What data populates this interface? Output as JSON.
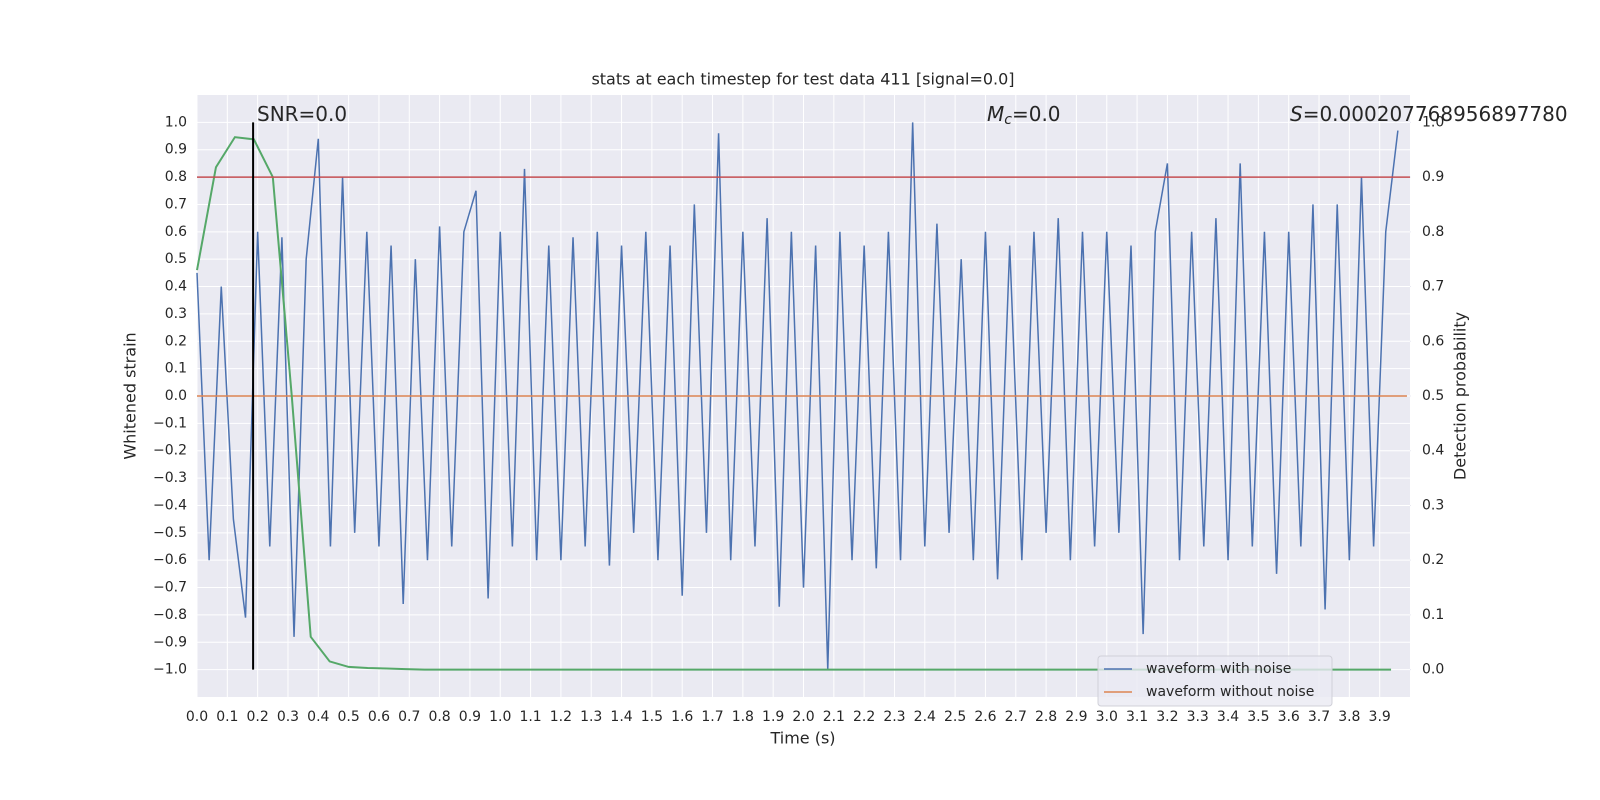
{
  "chart_data": {
    "type": "line",
    "title": "stats at each timestep for test data 411 [signal=0.0]",
    "xlabel": "Time (s)",
    "ylabel": "Whitened strain",
    "y2label": "Detection probability",
    "annotations": [
      {
        "rest": "SNR=0.0"
      },
      {
        "symbol": "M",
        "subscript": "c",
        "rest": "=0.0"
      },
      {
        "symbol": "S",
        "rest": "=0.000207768956897780"
      }
    ],
    "xlim": [
      0,
      4.0
    ],
    "ylim": [
      -1.1,
      1.1
    ],
    "y2lim": [
      -0.05,
      1.05
    ],
    "xticks": [
      {
        "value": 0,
        "label": "0.0"
      },
      0.1,
      0.2,
      0.3,
      0.4,
      0.5,
      0.6,
      0.7,
      0.8,
      0.9,
      {
        "value": 1,
        "label": "1.0"
      },
      1.1,
      1.2,
      1.3,
      1.4,
      1.5,
      1.6,
      1.7,
      1.8,
      1.9,
      {
        "value": 2,
        "label": "2.0"
      },
      2.1,
      2.2,
      2.3,
      2.4,
      2.5,
      2.6,
      2.7,
      2.8,
      2.9,
      {
        "value": 3,
        "label": "3.0"
      },
      3.1,
      3.2,
      3.3,
      3.4,
      3.5,
      3.6,
      3.7,
      3.8,
      3.9
    ],
    "yticks": [
      {
        "value": 1,
        "label": "1.0"
      },
      0.9,
      0.8,
      0.7,
      0.6,
      0.5,
      0.4,
      0.3,
      0.2,
      0.1,
      {
        "value": 0,
        "label": "0.0"
      },
      {
        "value": -0.1,
        "label": "−0.1"
      },
      {
        "value": -0.2,
        "label": "−0.2"
      },
      {
        "value": -0.3,
        "label": "−0.3"
      },
      {
        "value": -0.4,
        "label": "−0.4"
      },
      {
        "value": -0.5,
        "label": "−0.5"
      },
      {
        "value": -0.6,
        "label": "−0.6"
      },
      {
        "value": -0.7,
        "label": "−0.7"
      },
      {
        "value": -0.8,
        "label": "−0.8"
      },
      {
        "value": -0.9,
        "label": "−0.9"
      },
      {
        "value": -1,
        "label": "−1.0"
      }
    ],
    "y2ticks": [
      {
        "value": 1,
        "label": "1.0"
      },
      0.9,
      0.8,
      0.7,
      0.6,
      0.5,
      0.4,
      0.3,
      0.2,
      0.1,
      {
        "value": 0,
        "label": "0.0"
      }
    ],
    "grid": true,
    "legend": "lower right",
    "series": [
      {
        "name": "waveform with noise",
        "color": "#4c72b0",
        "axis": "y",
        "x": [
          0.0,
          0.04,
          0.08,
          0.12,
          0.16,
          0.2,
          0.24,
          0.28,
          0.32,
          0.36,
          0.4,
          0.44,
          0.48,
          0.52,
          0.56,
          0.6,
          0.64,
          0.68,
          0.72,
          0.76,
          0.8,
          0.84,
          0.88,
          0.92,
          0.96,
          1.0,
          1.04,
          1.08,
          1.12,
          1.16,
          1.2,
          1.24,
          1.28,
          1.32,
          1.36,
          1.4,
          1.44,
          1.48,
          1.52,
          1.56,
          1.6,
          1.64,
          1.68,
          1.72,
          1.76,
          1.8,
          1.84,
          1.88,
          1.92,
          1.96,
          2.0,
          2.04,
          2.08,
          2.12,
          2.16,
          2.2,
          2.24,
          2.28,
          2.32,
          2.36,
          2.4,
          2.44,
          2.48,
          2.52,
          2.56,
          2.6,
          2.64,
          2.68,
          2.72,
          2.76,
          2.8,
          2.84,
          2.88,
          2.92,
          2.96,
          3.0,
          3.04,
          3.08,
          3.12,
          3.16,
          3.2,
          3.24,
          3.28,
          3.32,
          3.36,
          3.4,
          3.44,
          3.48,
          3.52,
          3.56,
          3.6,
          3.64,
          3.68,
          3.72,
          3.76,
          3.8,
          3.84,
          3.88,
          3.92,
          3.96
        ],
        "values": [
          0.45,
          -0.6,
          0.4,
          -0.45,
          -0.81,
          0.6,
          -0.55,
          0.58,
          -0.88,
          0.5,
          0.94,
          -0.55,
          0.8,
          -0.5,
          0.6,
          -0.55,
          0.55,
          -0.76,
          0.5,
          -0.6,
          0.62,
          -0.55,
          0.6,
          0.75,
          -0.74,
          0.6,
          -0.55,
          0.83,
          -0.6,
          0.55,
          -0.6,
          0.58,
          -0.55,
          0.6,
          -0.62,
          0.55,
          -0.5,
          0.6,
          -0.6,
          0.55,
          -0.73,
          0.7,
          -0.5,
          0.96,
          -0.6,
          0.6,
          -0.55,
          0.65,
          -0.77,
          0.6,
          -0.7,
          0.55,
          -1.0,
          0.6,
          -0.6,
          0.55,
          -0.63,
          0.6,
          -0.6,
          1.0,
          -0.55,
          0.63,
          -0.5,
          0.5,
          -0.6,
          0.6,
          -0.67,
          0.55,
          -0.6,
          0.6,
          -0.5,
          0.65,
          -0.6,
          0.6,
          -0.55,
          0.6,
          -0.5,
          0.55,
          -0.87,
          0.6,
          0.85,
          -0.6,
          0.6,
          -0.55,
          0.65,
          -0.6,
          0.85,
          -0.55,
          0.6,
          -0.65,
          0.6,
          -0.55,
          0.7,
          -0.78,
          0.7,
          -0.6,
          0.8,
          -0.55,
          0.6,
          0.97
        ]
      },
      {
        "name": "waveform without noise",
        "color": "#dd8452",
        "axis": "y",
        "x": [
          0,
          3.99
        ],
        "values": [
          0,
          0
        ]
      },
      {
        "color": "#55a868",
        "axis": "y2",
        "x": [
          0,
          0.0625,
          0.125,
          0.1875,
          0.25,
          0.3125,
          0.375,
          0.4375,
          0.5,
          0.5625,
          0.625,
          0.6875,
          0.75,
          0.8125,
          0.875,
          0.9375,
          1,
          1.0625,
          1.125,
          1.1875,
          1.25,
          1.3125,
          1.375,
          1.4375,
          1.5,
          1.5625,
          1.625,
          1.6875,
          1.75,
          1.8125,
          1.875,
          1.9375,
          2,
          2.0625,
          2.125,
          2.1875,
          2.25,
          2.3125,
          2.375,
          2.4375,
          2.5,
          2.5625,
          2.625,
          2.6875,
          2.75,
          2.8125,
          2.875,
          2.9375,
          3,
          3.0625,
          3.125,
          3.1875,
          3.25,
          3.3125,
          3.375,
          3.4375,
          3.5,
          3.5625,
          3.625,
          3.6875,
          3.75,
          3.8125,
          3.875,
          3.9375
        ],
        "values": [
          0.73,
          0.918,
          0.973,
          0.969,
          0.9,
          0.5,
          0.06,
          0.015,
          0.005,
          0.003,
          0.002,
          0.001,
          0,
          0,
          0,
          0,
          0,
          0,
          0,
          0,
          0,
          0,
          0,
          0,
          0,
          0,
          0,
          0,
          0,
          0,
          0,
          0,
          0,
          0,
          0,
          0,
          0,
          0,
          0,
          0,
          0,
          0,
          0,
          0,
          0,
          0,
          0,
          0,
          0,
          0,
          0,
          0,
          0,
          0,
          0,
          0,
          0,
          0,
          0,
          0,
          0,
          0,
          0,
          0
        ]
      }
    ],
    "hlines": [
      {
        "value": 0.9,
        "axis": "y2",
        "color": "#c44e52"
      }
    ],
    "vlines": [
      {
        "value": 0.185,
        "ymin": -1,
        "ymax": 1,
        "color": "#000000"
      }
    ]
  }
}
